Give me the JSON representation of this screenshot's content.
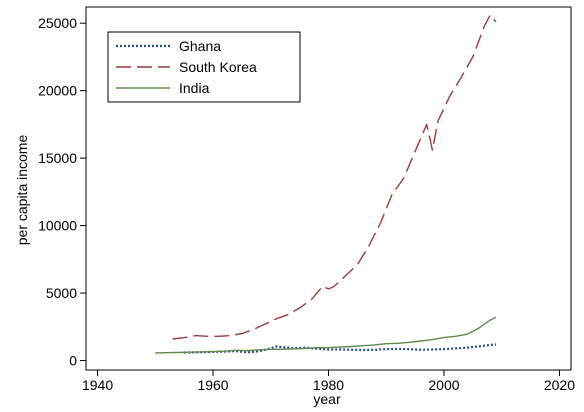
{
  "chart_data": {
    "type": "line",
    "title": "",
    "xlabel": "year",
    "ylabel": "per capita income",
    "xlim": [
      1938,
      2022
    ],
    "ylim": [
      -700,
      26200
    ],
    "xticks": [
      1940,
      1960,
      1980,
      2000,
      2020
    ],
    "yticks": [
      0,
      5000,
      10000,
      15000,
      20000,
      25000
    ],
    "grid": false,
    "legend_position": "top-left",
    "series": [
      {
        "name": "Ghana",
        "color": "#1f4e8c",
        "dash": "dotted",
        "x": [
          1955,
          1958,
          1960,
          1962,
          1964,
          1966,
          1968,
          1970,
          1971,
          1972,
          1974,
          1976,
          1978,
          1980,
          1982,
          1984,
          1986,
          1988,
          1990,
          1992,
          1994,
          1996,
          1998,
          2000,
          2002,
          2004,
          2006,
          2008,
          2009
        ],
        "y": [
          600,
          620,
          640,
          660,
          700,
          600,
          700,
          900,
          1050,
          1000,
          920,
          950,
          870,
          820,
          830,
          800,
          780,
          800,
          850,
          860,
          840,
          800,
          820,
          850,
          900,
          950,
          1050,
          1150,
          1200
        ]
      },
      {
        "name": "South Korea",
        "color": "#a03a3a",
        "dash": "long-dash",
        "x": [
          1953,
          1955,
          1957,
          1959,
          1961,
          1963,
          1965,
          1967,
          1969,
          1971,
          1973,
          1975,
          1977,
          1979,
          1980,
          1981,
          1983,
          1985,
          1987,
          1989,
          1991,
          1993,
          1995,
          1997,
          1998,
          1999,
          2001,
          2003,
          2005,
          2007,
          2008,
          2009
        ],
        "y": [
          1600,
          1700,
          1850,
          1800,
          1800,
          1850,
          2000,
          2300,
          2700,
          3100,
          3400,
          3900,
          4500,
          5500,
          5300,
          5500,
          6300,
          7100,
          8500,
          10200,
          12300,
          13500,
          15500,
          17500,
          15600,
          17800,
          19600,
          21000,
          22500,
          24800,
          25600,
          25100
        ]
      },
      {
        "name": "India",
        "color": "#5f8a4a",
        "dash": "solid",
        "x": [
          1950,
          1952,
          1954,
          1956,
          1958,
          1960,
          1962,
          1964,
          1966,
          1968,
          1970,
          1972,
          1974,
          1976,
          1978,
          1980,
          1982,
          1984,
          1986,
          1988,
          1990,
          1992,
          1994,
          1996,
          1998,
          2000,
          2002,
          2004,
          2006,
          2008,
          2009
        ],
        "y": [
          560,
          580,
          600,
          620,
          640,
          660,
          700,
          760,
          730,
          800,
          830,
          840,
          860,
          900,
          950,
          960,
          1000,
          1040,
          1100,
          1160,
          1250,
          1280,
          1350,
          1450,
          1550,
          1700,
          1800,
          1950,
          2400,
          3000,
          3200
        ]
      }
    ]
  }
}
